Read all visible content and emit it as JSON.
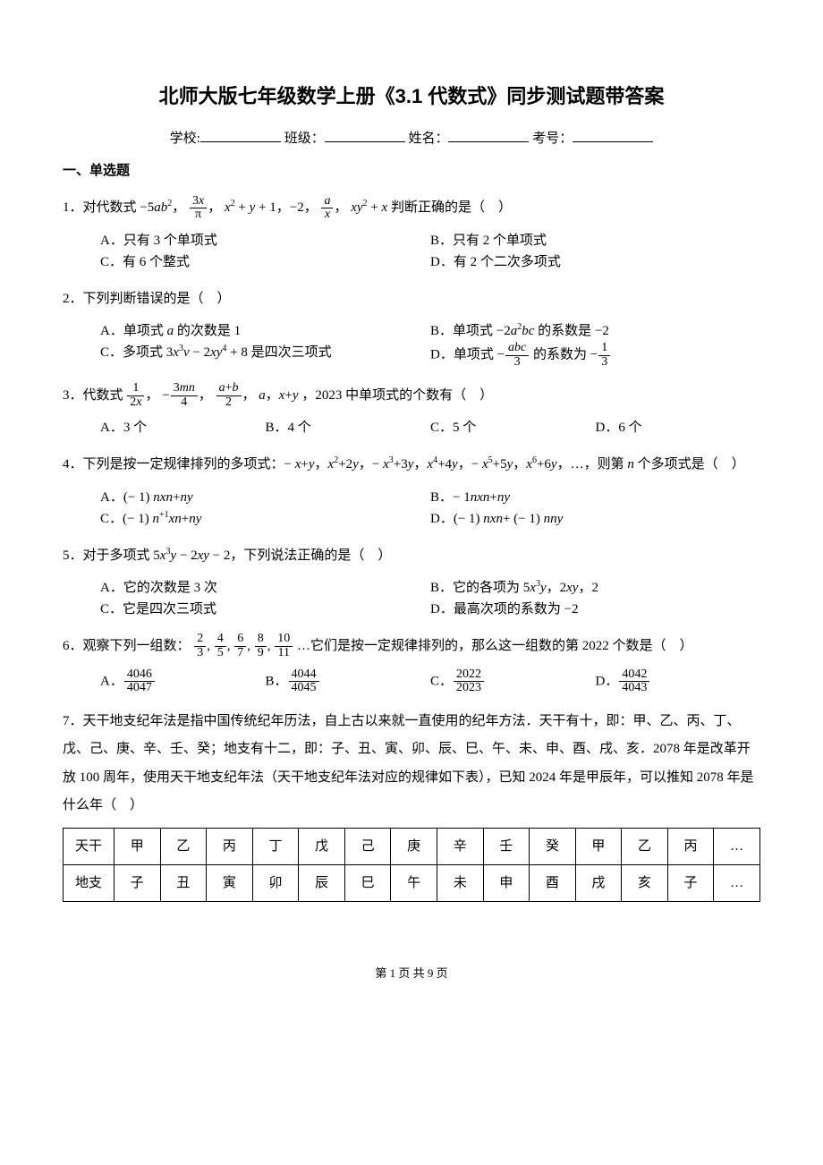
{
  "title": "北师大版七年级数学上册《3.1 代数式》同步测试题带答案",
  "info": {
    "school": "学校:",
    "class": "班级：",
    "name": "姓名：",
    "exam": "考号："
  },
  "section1": "一、单选题",
  "q1": {
    "stem_pre": "1．对代数式 −5",
    "stem_post": " 判断正确的是（　）",
    "A": "A．只有 3 个单项式",
    "B": "B．只有 2 个单项式",
    "C": "C．有 6 个整式",
    "D": "D．有 2 个二次多项式"
  },
  "q2": {
    "stem": "2．下列判断错误的是（　）",
    "A_pre": "A．单项式 ",
    "A_post": " 的次数是 1",
    "B_pre": "B．单项式 −2",
    "B_post": " 的系数是 −2",
    "C_pre": "C．多项式 3",
    "C_mid": " − 2",
    "C_post": " + 8 是四次三项式",
    "D_pre": "D．单项式 −",
    "D_mid": " 的系数为 −"
  },
  "q3": {
    "stem_pre": "3．代数式 ",
    "stem_post": "，2023 中单项式的个数有（　）",
    "A": "A．3 个",
    "B": "B．4 个",
    "C": "C．5 个",
    "D": "D．6 个"
  },
  "q4": {
    "stem": "4．下列是按一定规律排列的多项式：− x+y，x²+2y，− x³+3y，x⁴+4y，− x⁵+5y，x⁶+6y，…，则第 n 个多项式是（　）",
    "A": "A．(− 1) nxn+ny",
    "B": "B．− 1nxn+ny",
    "C": "C．(− 1) n+1xn+ny",
    "D": "D．(− 1) nxn+ (− 1) nny"
  },
  "q5": {
    "stem_pre": "5．对于多项式 5",
    "stem_post": "，下列说法正确的是（　）",
    "A": "A．它的次数是 3 次",
    "B_pre": "B．它的各项为 5",
    "B_mid": "，2",
    "B_post": "，2",
    "C": "C．它是四次三项式",
    "D": "D．最高次项的系数为 −2"
  },
  "q6": {
    "stem_pre": "6．观察下列一组数：",
    "stem_post": "…它们是按一定规律排列的，那么这一组数的第 2022 个数是（　）",
    "A": {
      "n": "4046",
      "d": "4047"
    },
    "B": {
      "n": "4044",
      "d": "4045"
    },
    "C": {
      "n": "2022",
      "d": "2023"
    },
    "D": {
      "n": "4042",
      "d": "4043"
    }
  },
  "q7": {
    "stem": "7．天干地支纪年法是指中国传统纪年历法，自上古以来就一直使用的纪年方法．天干有十，即：甲、乙、丙、丁、戊、己、庚、辛、壬、癸；地支有十二，即：子、丑、寅、卯、辰、巳、午、未、申、酉、戌、亥．2078 年是改革开放 100 周年，使用天干地支纪年法（天干地支纪年法对应的规律如下表），已知 2024 年是甲辰年，可以推知 2078 年是什么年（　）"
  },
  "table": {
    "row1": [
      "天干",
      "甲",
      "乙",
      "丙",
      "丁",
      "戊",
      "己",
      "庚",
      "辛",
      "壬",
      "癸",
      "甲",
      "乙",
      "丙",
      "…"
    ],
    "row2": [
      "地支",
      "子",
      "丑",
      "寅",
      "卯",
      "辰",
      "巳",
      "午",
      "未",
      "申",
      "酉",
      "戌",
      "亥",
      "子",
      "…"
    ]
  },
  "footer": "第 1 页 共 9 页"
}
